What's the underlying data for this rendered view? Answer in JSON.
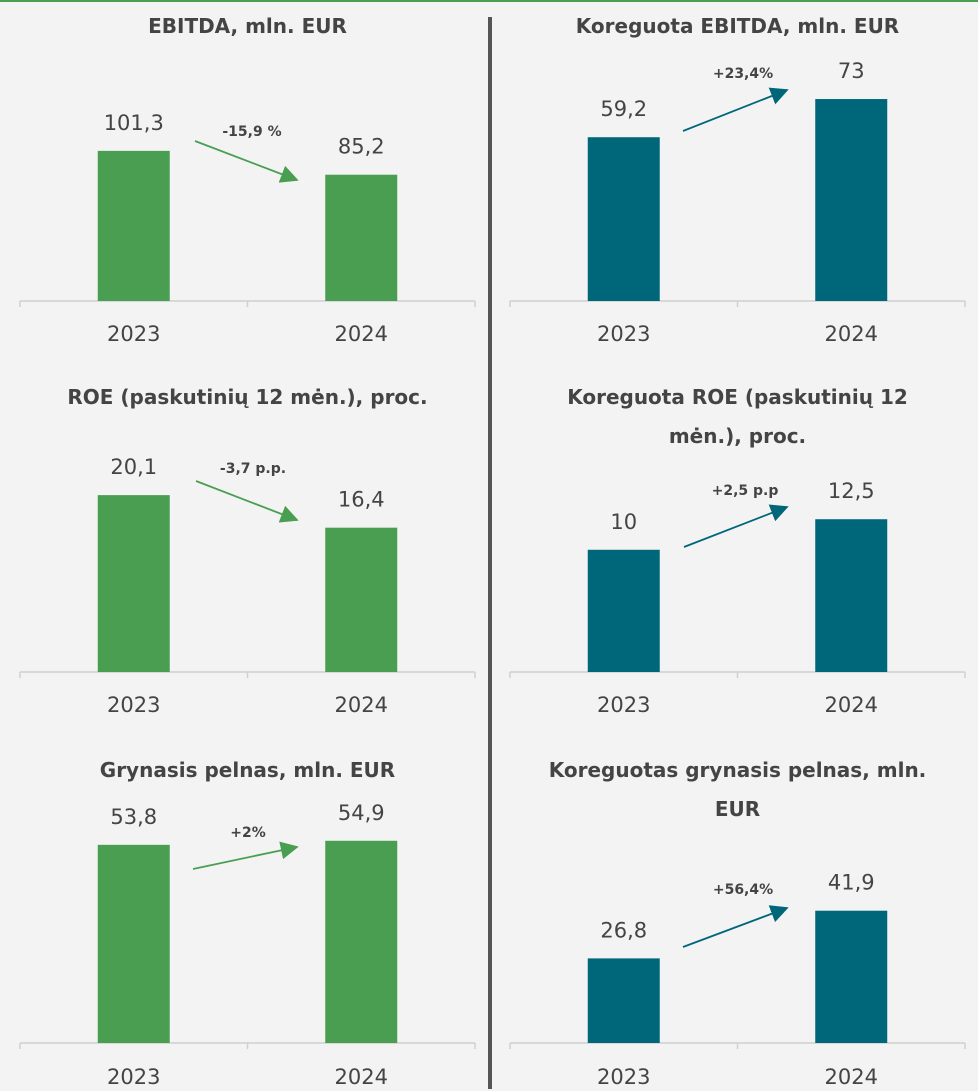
{
  "chart_data": [
    {
      "type": "bar",
      "title": "EBITDA, mln. EUR",
      "categories": [
        "2023",
        "2024"
      ],
      "values": [
        101.3,
        85.2
      ],
      "value_labels": [
        "101,3",
        "85,2"
      ],
      "annotation": "-15,9 %",
      "color": "#4a9e52",
      "ylim": [
        0,
        168
      ]
    },
    {
      "type": "bar",
      "title": "Koreguota EBITDA, mln. EUR",
      "categories": [
        "2023",
        "2024"
      ],
      "values": [
        59.2,
        73
      ],
      "value_labels": [
        "59,2",
        "73"
      ],
      "annotation": "+23,4%",
      "color": "#00667a",
      "ylim": [
        0,
        90
      ]
    },
    {
      "type": "bar",
      "title": "ROE (paskutinių 12 mėn.), proc.",
      "categories": [
        "2023",
        "2024"
      ],
      "values": [
        20.1,
        16.4
      ],
      "value_labels": [
        "20,1",
        "16,4"
      ],
      "annotation": "-3,7 p.p.",
      "color": "#4a9e52",
      "ylim": [
        0,
        25
      ]
    },
    {
      "type": "bar",
      "title": "Koreguota ROE (paskutinių 12 mėn.), proc.",
      "categories": [
        "2023",
        "2024"
      ],
      "values": [
        10,
        12.5
      ],
      "value_labels": [
        "10",
        "12,5"
      ],
      "annotation": "+2,5 p.p",
      "color": "#00667a",
      "ylim": [
        0,
        18
      ]
    },
    {
      "type": "bar",
      "title": "Grynasis pelnas, mln. EUR",
      "categories": [
        "2023",
        "2024"
      ],
      "values": [
        53.8,
        54.9
      ],
      "value_labels": [
        "53,8",
        "54,9"
      ],
      "annotation": "+2%",
      "color": "#4a9e52",
      "ylim": [
        0,
        60
      ]
    },
    {
      "type": "bar",
      "title": "Koreguotas grynasis pelnas, mln. EUR",
      "categories": [
        "2023",
        "2024"
      ],
      "values": [
        26.8,
        41.9
      ],
      "value_labels": [
        "26,8",
        "41,9"
      ],
      "annotation": "+56,4%",
      "color": "#00667a",
      "ylim": [
        0,
        70
      ]
    }
  ]
}
